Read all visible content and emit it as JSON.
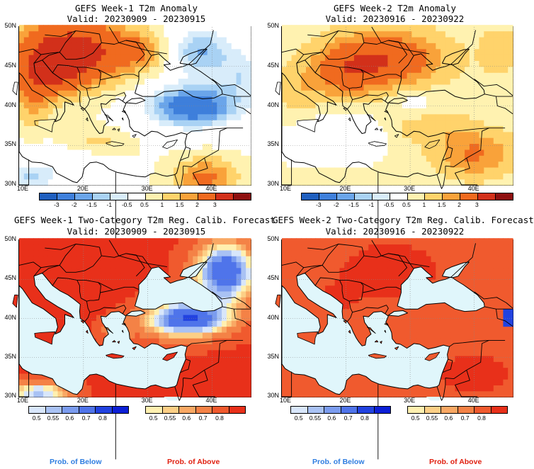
{
  "panels": [
    {
      "title": "GEFS Week-1 T2m Anomaly",
      "subtitle": "Valid: 20230909 - 20230915"
    },
    {
      "title": "GEFS Week-2 T2m Anomaly",
      "subtitle": "Valid: 20230916 - 20230922"
    },
    {
      "title": "GEFS Week-1 Two-Category T2m Reg. Calib. Forecast",
      "subtitle": "Valid: 20230909 - 20230915"
    },
    {
      "title": "GEFS Week-2 Two-Category T2m Reg. Calib. Forecast",
      "subtitle": "Valid: 20230916 - 20230922"
    }
  ],
  "axes": {
    "lat_labels": [
      "50N",
      "45N",
      "40N",
      "35N",
      "30N"
    ],
    "lon_labels": [
      "10E",
      "20E",
      "30E",
      "40E"
    ]
  },
  "anomaly_colorbar": {
    "labels": [
      "-3",
      "-2",
      "-1.5",
      "-1",
      "-0.5",
      "0.5",
      "1",
      "1.5",
      "2",
      "3"
    ],
    "colors": [
      "#1f5fbf",
      "#3e7fdb",
      "#6aa5ea",
      "#a9d2f4",
      "#d8ecfa",
      "#ffffff",
      "#fff2b0",
      "#ffd36b",
      "#f9a23a",
      "#f06a1f",
      "#d2301a",
      "#8e0f0f"
    ]
  },
  "prob_colorbar": {
    "labels": [
      "0.5",
      "0.55",
      "0.6",
      "0.7",
      "0.8"
    ],
    "below_colors": [
      "#d8e6fb",
      "#a9c2f4",
      "#7b9cef",
      "#4f74ea",
      "#2242e0",
      "#0c1fd6"
    ],
    "above_colors": [
      "#fff0b0",
      "#fccf86",
      "#f9a864",
      "#f48246",
      "#f05a2e",
      "#e8301a"
    ]
  },
  "legend": {
    "below": "Prob. of Below",
    "above": "Prob. of Above",
    "below_color": "#2e7de0",
    "above_color": "#e02010"
  },
  "sea_color": "#e0f6fb"
}
